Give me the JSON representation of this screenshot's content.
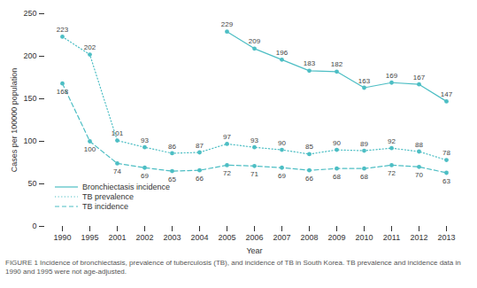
{
  "chart_data": {
    "type": "line",
    "caption": "FIGURE 1 Incidence of bronchiectasis, prevalence of tuberculosis (TB), and incidence of TB in South Korea. TB prevalence and incidence data in 1990 and 1995 were not age-adjusted.",
    "x_label": "Year",
    "y_label": "Cases per 100000 population",
    "x": [
      "1990",
      "1995",
      "2001",
      "2002",
      "2003",
      "2004",
      "2005",
      "2006",
      "2007",
      "2008",
      "2009",
      "2010",
      "2011",
      "2012",
      "2013"
    ],
    "series": [
      {
        "name": "Bronchiectasis incidence",
        "color": "#4dbec4",
        "line_style": "solid",
        "marker": "circle",
        "values": [
          null,
          null,
          null,
          null,
          null,
          null,
          229,
          209,
          196,
          183,
          182,
          163,
          169,
          167,
          147
        ]
      },
      {
        "name": "TB prevalence",
        "color": "#4dbec4",
        "line_style": "dotted",
        "marker": "circle",
        "values": [
          223,
          202,
          101,
          93,
          86,
          87,
          97,
          93,
          90,
          85,
          90,
          89,
          92,
          88,
          78
        ]
      },
      {
        "name": "TB incidence",
        "color": "#4dbec4",
        "line_style": "dashed",
        "marker": "circle",
        "values": [
          168,
          100,
          74,
          69,
          65,
          66,
          72,
          71,
          69,
          66,
          68,
          68,
          72,
          70,
          63
        ]
      }
    ],
    "ylim": [
      0,
      250
    ],
    "yticks": [
      0,
      50,
      100,
      150,
      200,
      250
    ],
    "grid": false,
    "legend": "lower left",
    "data_labels": true
  }
}
